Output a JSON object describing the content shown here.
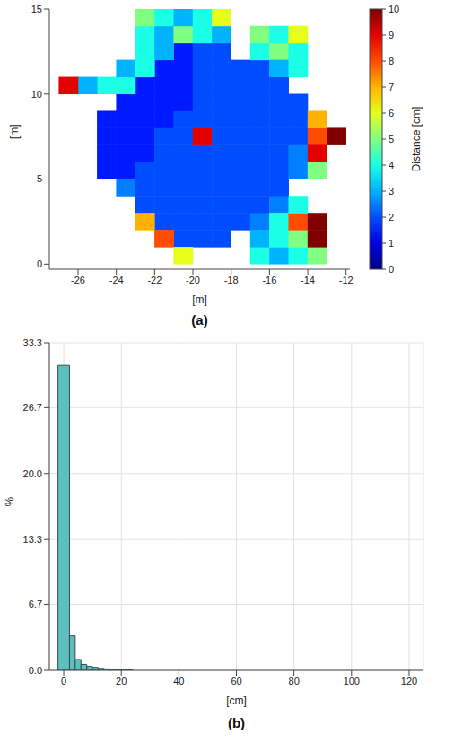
{
  "chart_data": [
    {
      "type": "scatter",
      "panel_label": "(a)",
      "x_label": "[m]",
      "y_label": "[m]",
      "marker": "square",
      "grid": false,
      "xlim": [
        -27.5,
        -11.8
      ],
      "xticks": [
        -26,
        -24,
        -22,
        -20,
        -18,
        -16,
        -14,
        -12
      ],
      "ylim": [
        -0.3,
        15
      ],
      "yticks": [
        0,
        5,
        10,
        15
      ],
      "colorbar": {
        "label": "Distance [cm]",
        "range": [
          0,
          10
        ],
        "ticks": [
          0,
          1,
          2,
          3,
          4,
          5,
          6,
          7,
          8,
          9,
          10
        ]
      },
      "points": [
        [
          -20.5,
          1.5,
          2
        ],
        [
          -19.5,
          1.5,
          2
        ],
        [
          -18.5,
          1.5,
          2
        ],
        [
          -21.5,
          2.5,
          2
        ],
        [
          -20.5,
          2.5,
          2
        ],
        [
          -19.5,
          2.5,
          2
        ],
        [
          -18.5,
          2.5,
          2
        ],
        [
          -17.5,
          2.5,
          2
        ],
        [
          -16.5,
          2.5,
          2.5
        ],
        [
          -22.5,
          3.5,
          2
        ],
        [
          -21.5,
          3.5,
          2
        ],
        [
          -20.5,
          3.5,
          2
        ],
        [
          -19.5,
          3.5,
          2
        ],
        [
          -18.5,
          3.5,
          2
        ],
        [
          -17.5,
          3.5,
          2
        ],
        [
          -16.5,
          3.5,
          2
        ],
        [
          -15.5,
          3.5,
          2.5
        ],
        [
          -23.5,
          4.5,
          2.5
        ],
        [
          -22.5,
          4.5,
          2
        ],
        [
          -21.5,
          4.5,
          2
        ],
        [
          -20.5,
          4.5,
          2
        ],
        [
          -19.5,
          4.5,
          2
        ],
        [
          -18.5,
          4.5,
          2
        ],
        [
          -17.5,
          4.5,
          2
        ],
        [
          -16.5,
          4.5,
          2
        ],
        [
          -15.5,
          4.5,
          2
        ],
        [
          -24.5,
          5.5,
          1.5
        ],
        [
          -23.5,
          5.5,
          1.5
        ],
        [
          -22.5,
          5.5,
          2
        ],
        [
          -21.5,
          5.5,
          2
        ],
        [
          -20.5,
          5.5,
          2
        ],
        [
          -19.5,
          5.5,
          2
        ],
        [
          -18.5,
          5.5,
          2
        ],
        [
          -17.5,
          5.5,
          2
        ],
        [
          -16.5,
          5.5,
          2
        ],
        [
          -15.5,
          5.5,
          2
        ],
        [
          -14.5,
          5.5,
          2.5
        ],
        [
          -24.5,
          6.5,
          1.5
        ],
        [
          -23.5,
          6.5,
          1.5
        ],
        [
          -22.5,
          6.5,
          1.5
        ],
        [
          -21.5,
          6.5,
          2
        ],
        [
          -20.5,
          6.5,
          2
        ],
        [
          -19.5,
          6.5,
          2
        ],
        [
          -18.5,
          6.5,
          2
        ],
        [
          -17.5,
          6.5,
          2
        ],
        [
          -16.5,
          6.5,
          2
        ],
        [
          -15.5,
          6.5,
          2
        ],
        [
          -14.5,
          6.5,
          2.5
        ],
        [
          -24.5,
          7.5,
          1.5
        ],
        [
          -23.5,
          7.5,
          1.5
        ],
        [
          -22.5,
          7.5,
          1.5
        ],
        [
          -21.5,
          7.5,
          2
        ],
        [
          -20.5,
          7.5,
          2
        ],
        [
          -19.5,
          7.5,
          9
        ],
        [
          -18.5,
          7.5,
          2
        ],
        [
          -17.5,
          7.5,
          2
        ],
        [
          -16.5,
          7.5,
          2
        ],
        [
          -15.5,
          7.5,
          2
        ],
        [
          -14.5,
          7.5,
          2
        ],
        [
          -24.5,
          8.5,
          1.5
        ],
        [
          -23.5,
          8.5,
          1.5
        ],
        [
          -22.5,
          8.5,
          1.5
        ],
        [
          -21.5,
          8.5,
          1.5
        ],
        [
          -20.5,
          8.5,
          2
        ],
        [
          -19.5,
          8.5,
          2
        ],
        [
          -18.5,
          8.5,
          2
        ],
        [
          -17.5,
          8.5,
          2
        ],
        [
          -16.5,
          8.5,
          2
        ],
        [
          -15.5,
          8.5,
          2
        ],
        [
          -14.5,
          8.5,
          2
        ],
        [
          -23.5,
          9.5,
          1.5
        ],
        [
          -22.5,
          9.5,
          1.5
        ],
        [
          -21.5,
          9.5,
          1.5
        ],
        [
          -20.5,
          9.5,
          1.5
        ],
        [
          -19.5,
          9.5,
          2
        ],
        [
          -18.5,
          9.5,
          2
        ],
        [
          -17.5,
          9.5,
          2
        ],
        [
          -16.5,
          9.5,
          2
        ],
        [
          -15.5,
          9.5,
          2
        ],
        [
          -14.5,
          9.5,
          2
        ],
        [
          -22.5,
          10.5,
          1.5
        ],
        [
          -21.5,
          10.5,
          1.5
        ],
        [
          -20.5,
          10.5,
          1.5
        ],
        [
          -19.5,
          10.5,
          2
        ],
        [
          -18.5,
          10.5,
          2
        ],
        [
          -17.5,
          10.5,
          2
        ],
        [
          -16.5,
          10.5,
          2
        ],
        [
          -15.5,
          10.5,
          2
        ],
        [
          -21.5,
          11.5,
          1.5
        ],
        [
          -20.5,
          11.5,
          1.5
        ],
        [
          -19.5,
          11.5,
          2
        ],
        [
          -18.5,
          11.5,
          2
        ],
        [
          -17.5,
          11.5,
          2
        ],
        [
          -16.5,
          11.5,
          2
        ],
        [
          -20.5,
          12.5,
          1.5
        ],
        [
          -19.5,
          12.5,
          2
        ],
        [
          -18.5,
          12.5,
          2
        ],
        [
          -22.5,
          12.5,
          4
        ],
        [
          -21.5,
          12.5,
          3
        ],
        [
          -22.5,
          13.5,
          4
        ],
        [
          -21.5,
          13.5,
          3
        ],
        [
          -20.5,
          13.5,
          5
        ],
        [
          -19.5,
          13.5,
          4
        ],
        [
          -18.5,
          13.5,
          3
        ],
        [
          -22.5,
          14.5,
          5
        ],
        [
          -21.5,
          14.5,
          4
        ],
        [
          -20.5,
          14.5,
          3
        ],
        [
          -19.5,
          14.5,
          4
        ],
        [
          -18.5,
          14.5,
          6
        ],
        [
          -16.5,
          12.5,
          4
        ],
        [
          -15.5,
          12.5,
          5
        ],
        [
          -14.5,
          12.5,
          4
        ],
        [
          -16.5,
          13.5,
          5
        ],
        [
          -15.5,
          13.5,
          4
        ],
        [
          -14.5,
          13.5,
          6
        ],
        [
          -15.5,
          11.5,
          3
        ],
        [
          -14.5,
          11.5,
          4
        ],
        [
          -23.5,
          10.5,
          4
        ],
        [
          -23.5,
          11.5,
          3
        ],
        [
          -22.5,
          11.5,
          4
        ],
        [
          -24.5,
          10.5,
          4
        ],
        [
          -25.5,
          10.5,
          3
        ],
        [
          -26.5,
          10.5,
          9
        ],
        [
          -13.5,
          7.5,
          8
        ],
        [
          -13.5,
          6.5,
          9
        ],
        [
          -12.5,
          7.5,
          10
        ],
        [
          -13.5,
          8.5,
          7
        ],
        [
          -13.5,
          5.5,
          5
        ],
        [
          -16.5,
          0.5,
          4
        ],
        [
          -15.5,
          0.5,
          3
        ],
        [
          -14.5,
          0.5,
          4
        ],
        [
          -13.5,
          0.5,
          5
        ],
        [
          -16.5,
          1.5,
          3
        ],
        [
          -15.5,
          1.5,
          4
        ],
        [
          -14.5,
          1.5,
          5
        ],
        [
          -13.5,
          1.5,
          10
        ],
        [
          -15.5,
          2.5,
          4
        ],
        [
          -14.5,
          2.5,
          8
        ],
        [
          -13.5,
          2.5,
          10
        ],
        [
          -14.5,
          3.5,
          4
        ],
        [
          -21.5,
          1.5,
          8
        ],
        [
          -22.5,
          2.5,
          7
        ],
        [
          -20.5,
          0.5,
          6
        ]
      ]
    },
    {
      "type": "histogram",
      "panel_label": "(b)",
      "x_label": "[cm]",
      "y_label": "%",
      "color": "#5fbfbf",
      "grid": true,
      "bins": [
        -2,
        2,
        4,
        6,
        8,
        10,
        12,
        14,
        16,
        18,
        20,
        22,
        24
      ],
      "counts": [
        31.0,
        3.5,
        1.1,
        0.6,
        0.4,
        0.3,
        0.2,
        0.15,
        0.1,
        0.08,
        0.06,
        0.05
      ],
      "xlim": [
        -5,
        125
      ],
      "xticks": [
        0,
        20,
        40,
        60,
        80,
        100,
        120
      ],
      "ylim": [
        0,
        33.3
      ],
      "yticks": [
        {
          "value": 0,
          "label": "0.0"
        },
        6.7,
        13.3,
        {
          "value": 20,
          "label": "20.0"
        },
        26.7,
        33.3
      ]
    }
  ]
}
